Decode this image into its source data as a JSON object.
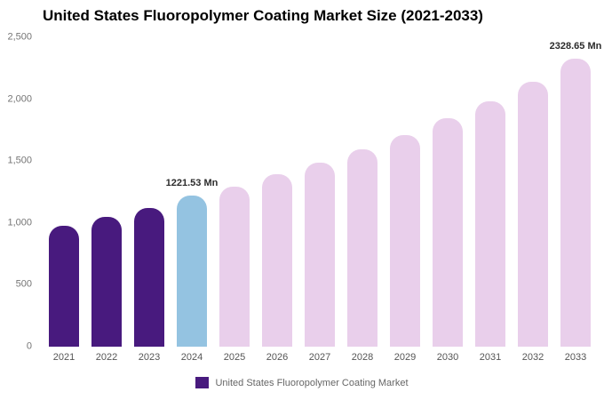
{
  "chart_data": {
    "type": "bar",
    "title": "United States Fluoropolymer Coating Market Size (2021-2033)",
    "categories": [
      "2021",
      "2022",
      "2023",
      "2024",
      "2025",
      "2026",
      "2027",
      "2028",
      "2029",
      "2030",
      "2031",
      "2032",
      "2033"
    ],
    "values": [
      975,
      1050,
      1120,
      1221.53,
      1295,
      1392,
      1490,
      1598,
      1712,
      1848,
      1985,
      2143,
      2328.65
    ],
    "unit": "Mn",
    "xlabel": "",
    "ylabel": "",
    "ylim": [
      0,
      2500
    ],
    "grid": false,
    "legend_position": "bottom",
    "yticks": [
      {
        "value": 0,
        "label": "0"
      },
      {
        "value": 500,
        "label": "500"
      },
      {
        "value": 1000,
        "label": "1,000"
      },
      {
        "value": 1500,
        "label": "1,500"
      },
      {
        "value": 2000,
        "label": "2,000"
      },
      {
        "value": 2500,
        "label": "2,500"
      }
    ],
    "annotations": [
      {
        "category": "2024",
        "text": "1221.53 Mn"
      },
      {
        "category": "2033",
        "text": "2328.65 Mn"
      }
    ],
    "bar_colors": [
      "#481a7e",
      "#481a7e",
      "#481a7e",
      "#94c3e1",
      "#e9cfeb",
      "#e9cfeb",
      "#e9cfeb",
      "#e9cfeb",
      "#e9cfeb",
      "#e9cfeb",
      "#e9cfeb",
      "#e9cfeb",
      "#e9cfeb"
    ],
    "colors": {
      "historical": "#481a7e",
      "highlight_current": "#94c3e1",
      "forecast": "#e9cfeb"
    }
  },
  "legend": {
    "label": "United States Fluoropolymer Coating Market",
    "swatch_color": "#481a7e"
  }
}
